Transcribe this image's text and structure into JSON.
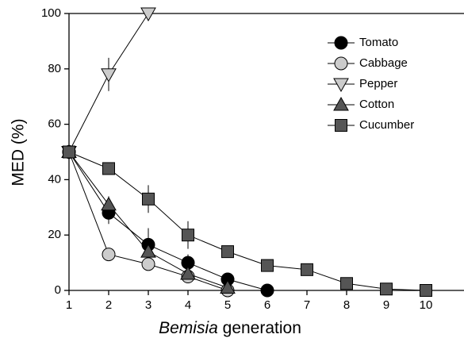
{
  "chart_data": {
    "type": "line",
    "xlabel": [
      "Bemisia",
      "generation"
    ],
    "ylabel": "MED (%)",
    "xlim": [
      1,
      10.96
    ],
    "xticks": [
      1,
      2,
      3,
      4,
      5,
      6,
      7,
      8,
      9,
      10
    ],
    "ylim": [
      0,
      100
    ],
    "yticks": [
      0,
      20,
      40,
      60,
      80,
      100
    ],
    "legend": "upper right",
    "series": [
      {
        "name": "Tomato",
        "color": "#000000",
        "marker": "circle",
        "x": [
          1,
          2,
          3,
          4,
          5,
          6
        ],
        "values": [
          50,
          28,
          16.5,
          10,
          4,
          0
        ],
        "errors": [
          null,
          4,
          6,
          3,
          2,
          null
        ]
      },
      {
        "name": "Cabbage",
        "color": "#cccccc",
        "marker": "circle",
        "x": [
          1,
          2,
          3,
          4,
          5
        ],
        "values": [
          50,
          13,
          9.5,
          5,
          0
        ],
        "errors": [
          null,
          null,
          null,
          null,
          null
        ]
      },
      {
        "name": "Pepper",
        "color": "#cccccc",
        "marker": "triangle-down",
        "x": [
          1,
          2,
          3
        ],
        "values": [
          50,
          78,
          100
        ],
        "errors": [
          null,
          6,
          null
        ]
      },
      {
        "name": "Cotton",
        "color": "#555555",
        "marker": "triangle-up",
        "x": [
          1,
          2,
          3,
          4,
          5
        ],
        "values": [
          50,
          31,
          14,
          6,
          1
        ],
        "errors": [
          null,
          3,
          3,
          2,
          null
        ]
      },
      {
        "name": "Cucumber",
        "color": "#555555",
        "marker": "square",
        "x": [
          1,
          2,
          3,
          4,
          5,
          6,
          7,
          8,
          9,
          10
        ],
        "values": [
          50,
          44,
          33,
          20,
          14,
          9,
          7.5,
          2.5,
          0.5,
          0
        ],
        "errors": [
          null,
          2,
          5,
          5,
          null,
          2,
          null,
          null,
          null,
          null
        ]
      }
    ]
  }
}
